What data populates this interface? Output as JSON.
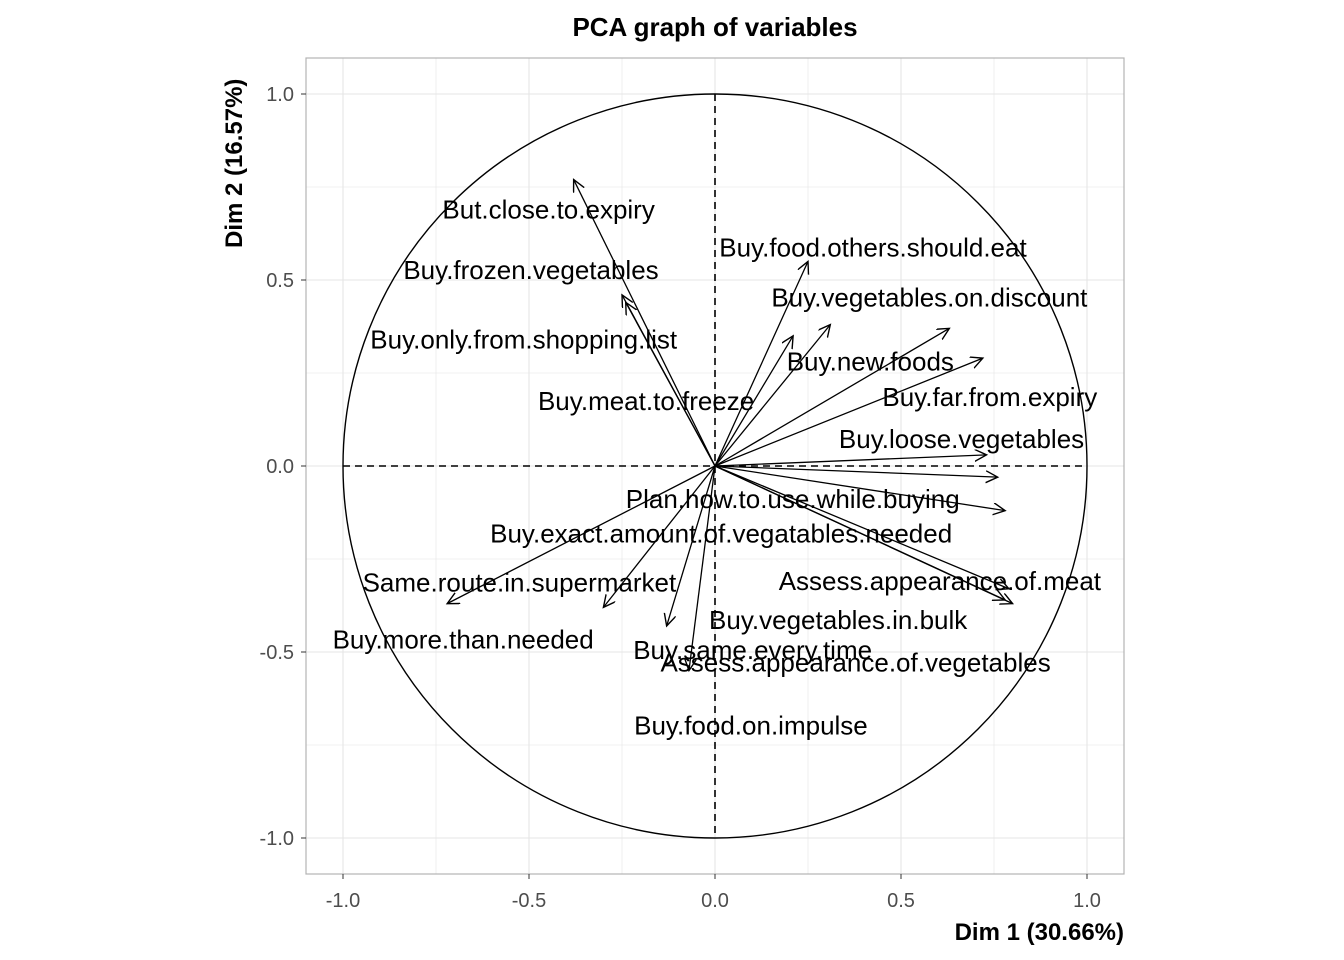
{
  "chart_data": {
    "type": "scatter",
    "subtype": "pca-variable-correlation-circle",
    "title": "PCA graph of variables",
    "xlabel": "Dim 1 (30.66%)",
    "ylabel": "Dim 2 (16.57%)",
    "xlim": [
      -1.1,
      1.1
    ],
    "ylim": [
      -1.1,
      1.1
    ],
    "xticks": [
      -1.0,
      -0.5,
      0.0,
      0.5,
      1.0
    ],
    "yticks": [
      -1.0,
      -0.5,
      0.0,
      0.5,
      1.0
    ],
    "xtick_labels": [
      "-1.0",
      "-0.5",
      "0.0",
      "0.5",
      "1.0"
    ],
    "ytick_labels": [
      "-1.0",
      "-0.5",
      "0.0",
      "0.5",
      "1.0"
    ],
    "grid": true,
    "unit_circle": true,
    "reference_lines": "dashed at x=0 and y=0",
    "colors": {
      "arrow": "#000000",
      "grid": "#e5e5e5",
      "panel_border": "#b3b3b3"
    },
    "variables": [
      {
        "name": "But.close.to.expiry",
        "x": -0.38,
        "y": 0.77
      },
      {
        "name": "Buy.frozen.vegetables",
        "x": -0.25,
        "y": 0.46
      },
      {
        "name": "Buy.only.from.shopping.list",
        "x": -0.24,
        "y": 0.44
      },
      {
        "name": "Buy.meat.to.freeze",
        "x": 0.21,
        "y": 0.35
      },
      {
        "name": "Buy.food.others.should.eat",
        "x": 0.25,
        "y": 0.55
      },
      {
        "name": "Buy.vegetables.on.discount",
        "x": 0.63,
        "y": 0.37
      },
      {
        "name": "Buy.new.foods",
        "x": 0.31,
        "y": 0.38
      },
      {
        "name": "Buy.far.from.expiry",
        "x": 0.72,
        "y": 0.29
      },
      {
        "name": "Buy.loose.vegetables",
        "x": 0.73,
        "y": 0.03
      },
      {
        "name": "Plan.how.to.use.while.buying",
        "x": 0.76,
        "y": -0.03
      },
      {
        "name": "Buy.exact.amount.of.vegatables.needed",
        "x": 0.78,
        "y": -0.12
      },
      {
        "name": "Assess.appearance.of.meat",
        "x": 0.79,
        "y": -0.33
      },
      {
        "name": "Buy.vegetables.in.bulk",
        "x": 0.78,
        "y": -0.36
      },
      {
        "name": "Assess.appearance.of.vegetables",
        "x": 0.8,
        "y": -0.37
      },
      {
        "name": "Same.route.in.supermarket",
        "x": -0.3,
        "y": -0.38
      },
      {
        "name": "Buy.more.than.needed",
        "x": -0.72,
        "y": -0.37
      },
      {
        "name": "Buy.same.every.time",
        "x": -0.13,
        "y": -0.43
      },
      {
        "name": "Buy.food.on.impulse",
        "x": -0.07,
        "y": -0.55
      }
    ]
  }
}
